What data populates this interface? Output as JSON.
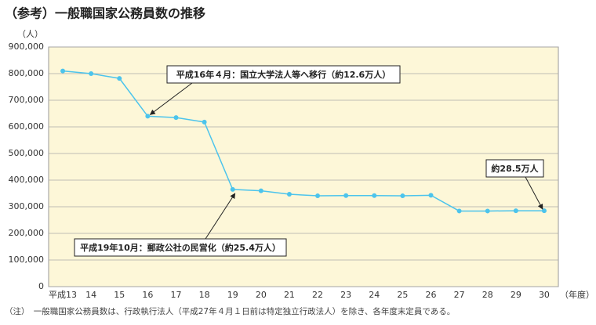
{
  "chart_data": {
    "type": "line",
    "title": "（参考）一般職国家公務員数の推移",
    "y_unit": "（人）",
    "x_unit": "（年度）",
    "note": "（注）　一般職国家公務員数は、行政執行法人（平成27年４月１日前は特定独立行政法人）を除き、各年度末定員である。",
    "categories": [
      "平成13",
      "14",
      "15",
      "16",
      "17",
      "18",
      "19",
      "20",
      "21",
      "22",
      "23",
      "24",
      "25",
      "26",
      "27",
      "28",
      "29",
      "30"
    ],
    "series": [
      {
        "color": "#4cc4ec",
        "values": [
          810000,
          800000,
          782000,
          640000,
          635000,
          618000,
          365000,
          360000,
          347000,
          341000,
          342000,
          342000,
          341000,
          343000,
          284000,
          284000,
          285000,
          285000
        ]
      }
    ],
    "ylim": [
      0,
      900000
    ],
    "yticks": [
      0,
      {
        "value": 100000,
        "label": "100,000"
      },
      {
        "value": 200000,
        "label": "200,000"
      },
      {
        "value": 300000,
        "label": "300,000"
      },
      {
        "value": 400000,
        "label": "400,000"
      },
      {
        "value": 500000,
        "label": "500,000"
      },
      {
        "value": 600000,
        "label": "600,000"
      },
      {
        "value": 700000,
        "label": "700,000"
      },
      {
        "value": 800000,
        "label": "800,000"
      },
      {
        "value": 900000,
        "label": "900,000"
      }
    ],
    "grid": true,
    "annotations": [
      "平成16年４月：国立大学法人等へ移行（約12.6万人）",
      "平成19年10月：郵政公社の民営化（約25.4万人）",
      "約28.5万人"
    ]
  }
}
